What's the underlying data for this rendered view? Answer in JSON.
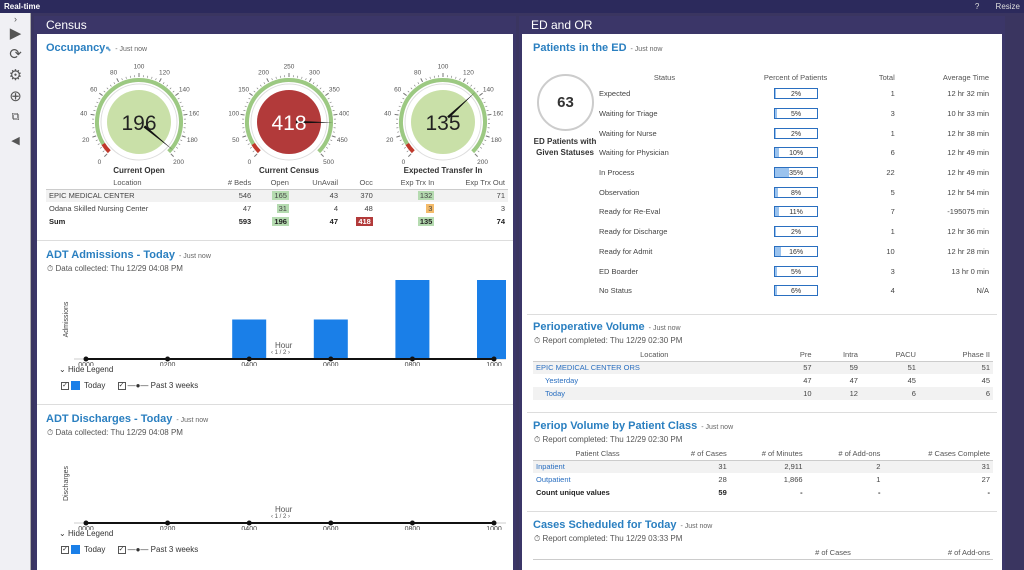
{
  "app": {
    "title": "Real-time",
    "help": "?",
    "resize": "Resize"
  },
  "census": {
    "title": "Census",
    "occupancy": {
      "title": "Occupancy",
      "now": "- Just now",
      "gauges": [
        {
          "label": "Current Open",
          "value": "196",
          "ticks": [
            "0",
            "20",
            "40",
            "60",
            "80",
            "100",
            "120",
            "140",
            "160",
            "180",
            "200"
          ],
          "fill": 0.98,
          "face": "#c9e0a8"
        },
        {
          "label": "Current Census",
          "value": "418",
          "ticks": [
            "0",
            "50",
            "100",
            "150",
            "200",
            "250",
            "300",
            "350",
            "400",
            "450",
            "500"
          ],
          "fill": 0.836,
          "face": "#b23a3a"
        },
        {
          "label": "Expected Transfer In",
          "value": "135",
          "ticks": [
            "0",
            "20",
            "40",
            "60",
            "80",
            "100",
            "120",
            "140",
            "160",
            "180",
            "200"
          ],
          "fill": 0.675,
          "face": "#c9e0a8"
        }
      ],
      "table": {
        "headers": [
          "Location",
          "# Beds",
          "Open",
          "UnAvail",
          "Occ",
          "Exp Trx In",
          "Exp Trx Out"
        ],
        "rows": [
          [
            "EPIC MEDICAL CENTER",
            "546",
            "165",
            "43",
            "370",
            "132",
            "71"
          ],
          [
            "Odana Skilled Nursing Center",
            "47",
            "31",
            "4",
            "48",
            "3",
            "3"
          ],
          [
            "Sum",
            "593",
            "196",
            "47",
            "418",
            "135",
            "74"
          ]
        ]
      }
    },
    "admissions": {
      "title": "ADT Admissions - Today",
      "now": "- Just now",
      "collected": "Data collected: Thu 12/29 04:08 PM",
      "ylabel": "Admissions",
      "xlabel": "Hour",
      "pager": "1 / 2",
      "hide_legend": "Hide Legend",
      "legend_today": "Today",
      "legend_past": "Past 3 weeks"
    },
    "discharges": {
      "title": "ADT Discharges - Today",
      "now": "- Just now",
      "collected": "Data collected: Thu 12/29 04:08 PM",
      "ylabel": "Discharges",
      "xlabel": "Hour",
      "pager": "1 / 2",
      "hide_legend": "Hide Legend",
      "legend_today": "Today",
      "legend_past": "Past 3 weeks"
    }
  },
  "ed": {
    "title": "ED and OR",
    "patients": {
      "title": "Patients in the ED",
      "now": "- Just now",
      "count": "63",
      "count_label": "ED Patients with Given Statuses",
      "headers": [
        "Status",
        "Percent of Patients",
        "Total",
        "Average Time"
      ],
      "rows": [
        {
          "status": "Expected",
          "pct": "2%",
          "frac": 0.02,
          "total": "1",
          "avg": "12 hr 32 min"
        },
        {
          "status": "Waiting for Triage",
          "pct": "5%",
          "frac": 0.05,
          "total": "3",
          "avg": "10 hr 33 min"
        },
        {
          "status": "Waiting for Nurse",
          "pct": "2%",
          "frac": 0.02,
          "total": "1",
          "avg": "12 hr 38 min"
        },
        {
          "status": "Waiting for Physician",
          "pct": "10%",
          "frac": 0.1,
          "total": "6",
          "avg": "12 hr 49 min"
        },
        {
          "status": "In Process",
          "pct": "35%",
          "frac": 0.35,
          "total": "22",
          "avg": "12 hr 49 min"
        },
        {
          "status": "Observation",
          "pct": "8%",
          "frac": 0.08,
          "total": "5",
          "avg": "12 hr 54 min"
        },
        {
          "status": "Ready for Re-Eval",
          "pct": "11%",
          "frac": 0.11,
          "total": "7",
          "avg": "-195075 min"
        },
        {
          "status": "Ready for Discharge",
          "pct": "2%",
          "frac": 0.02,
          "total": "1",
          "avg": "12 hr 36 min"
        },
        {
          "status": "Ready for Admit",
          "pct": "16%",
          "frac": 0.16,
          "total": "10",
          "avg": "12 hr 28 min"
        },
        {
          "status": "ED Boarder",
          "pct": "5%",
          "frac": 0.05,
          "total": "3",
          "avg": "13 hr 0 min"
        },
        {
          "status": "No Status",
          "pct": "6%",
          "frac": 0.06,
          "total": "4",
          "avg": "N/A"
        }
      ]
    },
    "periop": {
      "title": "Perioperative Volume",
      "now": "- Just now",
      "completed": "Report completed: Thu 12/29 02:30 PM",
      "headers": [
        "Location",
        "Pre",
        "Intra",
        "PACU",
        "Phase II"
      ],
      "rows": [
        [
          "EPIC MEDICAL CENTER ORS",
          "57",
          "59",
          "51",
          "51"
        ],
        [
          "Yesterday",
          "47",
          "47",
          "45",
          "45"
        ],
        [
          "Today",
          "10",
          "12",
          "6",
          "6"
        ]
      ]
    },
    "periop_class": {
      "title": "Periop Volume by Patient Class",
      "now": "- Just now",
      "completed": "Report completed: Thu 12/29 02:30 PM",
      "headers": [
        "Patient Class",
        "# of Cases",
        "# of Minutes",
        "# of Add-ons",
        "# Cases Complete"
      ],
      "rows": [
        [
          "Inpatient",
          "31",
          "2,911",
          "2",
          "31"
        ],
        [
          "Outpatient",
          "28",
          "1,866",
          "1",
          "27"
        ],
        [
          "Count unique values",
          "59",
          "-",
          "-",
          "-"
        ]
      ]
    },
    "cases": {
      "title": "Cases Scheduled for Today",
      "now": "- Just now",
      "completed": "Report completed: Thu 12/29 03:33 PM",
      "headers": [
        "# of Cases",
        "# of Add-ons"
      ]
    }
  },
  "chart_data": [
    {
      "type": "bar",
      "title": "ADT Admissions - Today",
      "xlabel": "Hour",
      "ylabel": "Admissions",
      "categories": [
        "0000",
        "0100",
        "0200",
        "0300",
        "0400",
        "0500",
        "0600",
        "0700",
        "0800",
        "0900",
        "1000"
      ],
      "series": [
        {
          "name": "Today",
          "values": [
            0,
            0,
            0,
            0,
            1,
            0,
            1,
            0,
            2,
            0,
            2
          ]
        },
        {
          "name": "Past 3 weeks",
          "values": [
            0,
            0,
            0,
            0,
            0,
            0,
            0,
            0,
            0,
            0,
            0
          ]
        }
      ],
      "tick_labels": [
        "0000",
        "0200",
        "0400",
        "0600",
        "0800",
        "1000"
      ],
      "ylim": [
        0,
        2
      ]
    },
    {
      "type": "bar",
      "title": "ADT Discharges - Today",
      "xlabel": "Hour",
      "ylabel": "Discharges",
      "categories": [
        "0000",
        "0100",
        "0200",
        "0300",
        "0400",
        "0500",
        "0600",
        "0700",
        "0800",
        "0900",
        "1000"
      ],
      "series": [
        {
          "name": "Today",
          "values": [
            0,
            0,
            0,
            0,
            0,
            0,
            0,
            0,
            0,
            0,
            0
          ]
        },
        {
          "name": "Past 3 weeks",
          "values": [
            0,
            0,
            0,
            0,
            0,
            0,
            0,
            0,
            0,
            0,
            0
          ]
        }
      ],
      "tick_labels": [
        "0000",
        "0200",
        "0400",
        "0600",
        "0800",
        "1000"
      ],
      "ylim": [
        0,
        2
      ]
    }
  ]
}
